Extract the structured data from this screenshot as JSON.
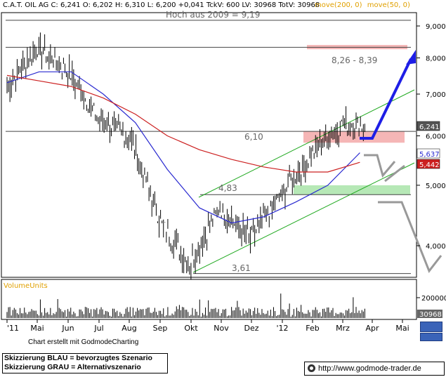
{
  "header": {
    "text": "C.A.T. OIL AG  C: 6,241  O: 6,202  H: 6,310  L: 6,200  +0,041  TckV: 600  LV: 30968  TotV: 30968",
    "ma_200_label": "move(200, 0)",
    "ma_50_label": "move(50, 0)",
    "ma_200_color": "#d22020",
    "ma_50_color": "#e0a000"
  },
  "annotations": {
    "high_2009": "Hoch aus 2009 = 9,19",
    "resistance_zone": "8,26 - 8,39",
    "level_610": "6,10",
    "level_483": "4,83",
    "level_361": "3,61"
  },
  "price_tags": {
    "close": "6,241",
    "ma50": "5,637",
    "ma200": "5,442"
  },
  "volume": {
    "label": "VolumeUnits",
    "tick_200000": "200000",
    "last_volume": "30968"
  },
  "footer": {
    "credit": "Chart erstellt mit GodmodeCharting",
    "legend_blue": "Skizzierung BLAU = bevorzugtes Szenario",
    "legend_grey": "Skizzierung GRAU = Alternativszenario",
    "website": "http://www.godmode-trader.de"
  },
  "colors": {
    "price": "#000000",
    "ma50": "#2a2ad0",
    "ma200": "#cc2020",
    "channel": "#22aa22",
    "scenario_blue": "#1e1ee6",
    "scenario_grey": "#999999",
    "zone_red": "#f5b6b6",
    "zone_green": "#b6e8b6"
  },
  "chart_data": {
    "type": "line",
    "title": "C.A.T. OIL AG",
    "y_scale": "log",
    "ylim": [
      3.45,
      9.6
    ],
    "y_ticks": [
      4.0,
      5.0,
      6.0,
      7.0,
      8.0,
      9.0
    ],
    "y_tick_labels": [
      "4,000",
      "5,000",
      "6,000",
      "7,000",
      "8,000",
      "9,000"
    ],
    "x_ticks": [
      "'11",
      "Mai",
      "Jun",
      "Jul",
      "Aug",
      "Sep",
      "Okt",
      "Nov",
      "Dez",
      "'12",
      "Feb",
      "Mrz",
      "Apr",
      "Mai"
    ],
    "series": [
      {
        "name": "C.A.T. OIL AG",
        "x": [
          "'11",
          "Mai",
          "Jun",
          "Jul",
          "Aug",
          "Sep",
          "Okt",
          "Nov",
          "Dez",
          "'12",
          "Feb",
          "Mrz"
        ],
        "values": [
          7.2,
          8.3,
          7.6,
          6.4,
          6.0,
          4.4,
          3.7,
          4.6,
          4.1,
          4.8,
          5.6,
          6.24
        ]
      },
      {
        "name": "move(50, 0)",
        "x": [
          "'11",
          "Mai",
          "Jun",
          "Jul",
          "Aug",
          "Sep",
          "Okt",
          "Nov",
          "Dez",
          "'12",
          "Feb",
          "Mrz"
        ],
        "values": [
          7.3,
          7.6,
          7.6,
          7.0,
          6.3,
          5.3,
          4.6,
          4.35,
          4.45,
          4.7,
          5.0,
          5.637
        ]
      },
      {
        "name": "move(200, 0)",
        "x": [
          "'11",
          "Mai",
          "Jun",
          "Jul",
          "Aug",
          "Sep",
          "Okt",
          "Nov",
          "Dez",
          "'12",
          "Feb",
          "Mrz"
        ],
        "values": [
          7.5,
          7.35,
          7.2,
          6.9,
          6.5,
          6.0,
          5.7,
          5.5,
          5.35,
          5.25,
          5.25,
          5.442
        ]
      }
    ],
    "levels": [
      9.19,
      8.32,
      6.1,
      4.83,
      3.61
    ],
    "zones": [
      [
        8.26,
        8.39
      ],
      [
        5.85,
        6.1
      ],
      [
        4.83,
        5.0
      ]
    ],
    "volume_ticks": [
      200000
    ],
    "legend": "top"
  }
}
